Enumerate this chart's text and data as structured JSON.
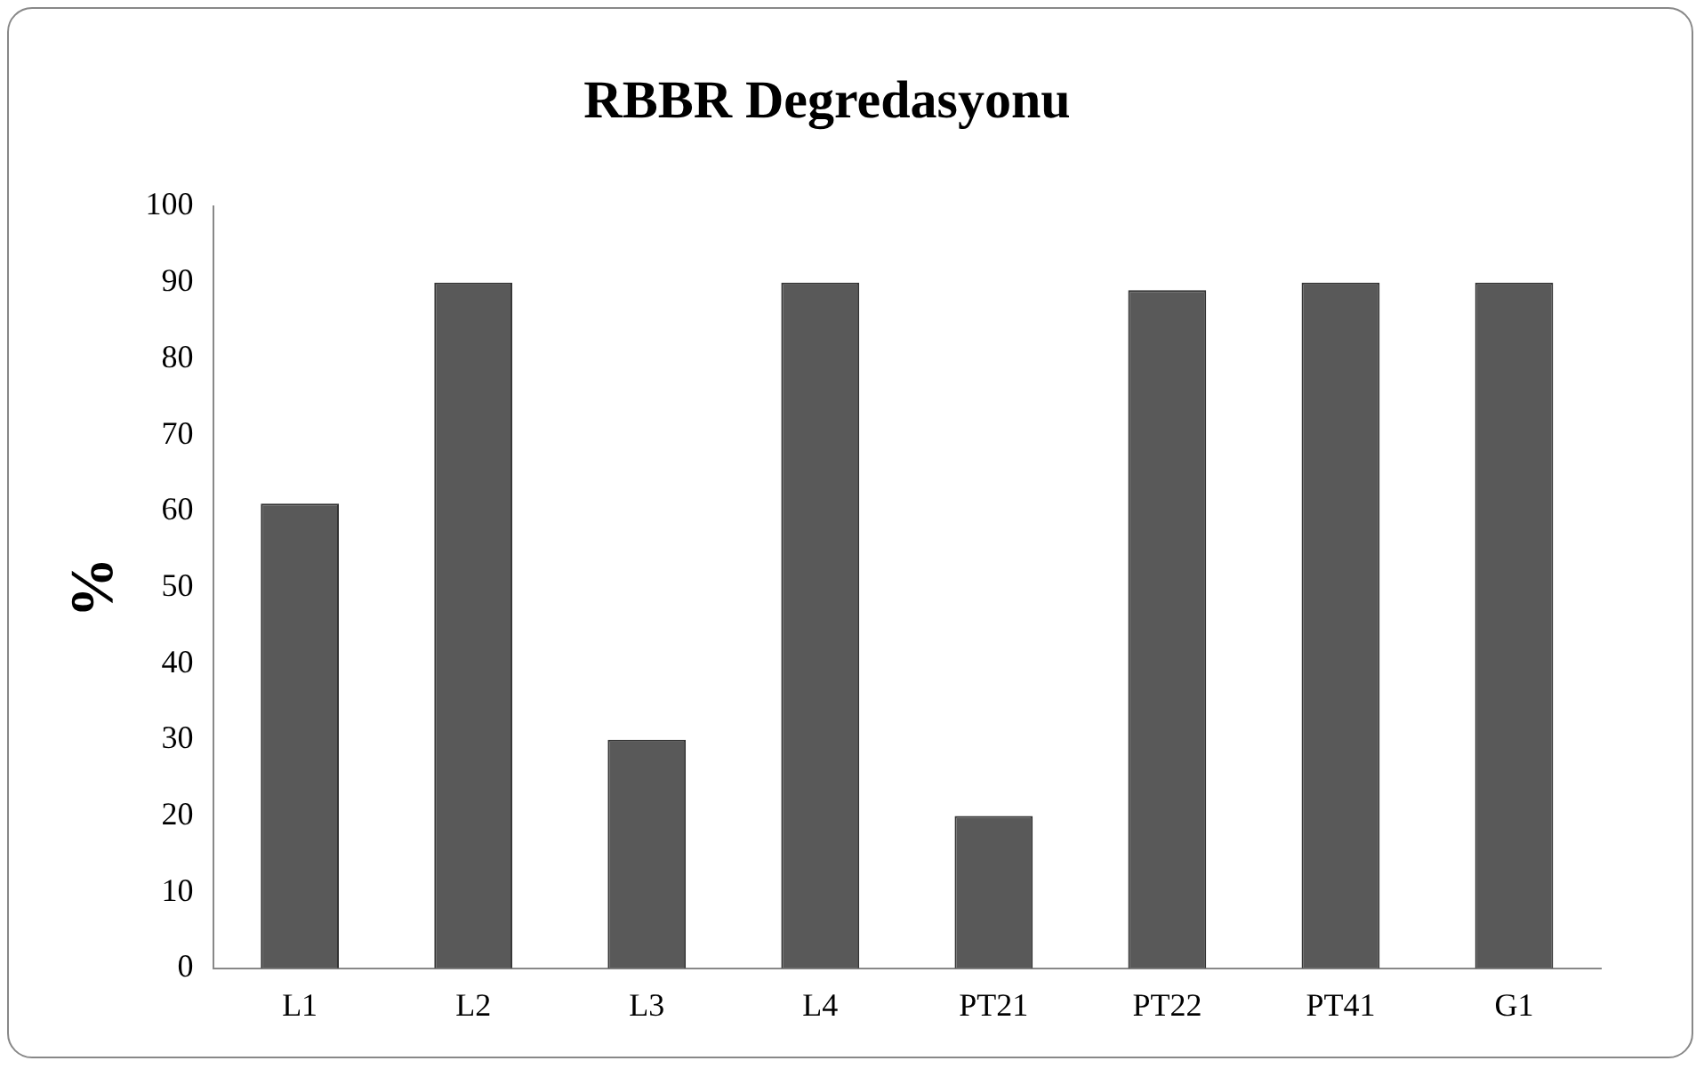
{
  "chart_data": {
    "type": "bar",
    "title": "RBBR Degredasyonu",
    "ylabel": "%",
    "categories": [
      "L1",
      "L2",
      "L3",
      "L4",
      "PT21",
      "PT22",
      "PT41",
      "G1"
    ],
    "values": [
      61,
      90,
      30,
      90,
      20,
      89,
      90,
      90
    ],
    "color": "#595959",
    "ylim": [
      0,
      100
    ],
    "yticks": [
      0,
      10,
      20,
      30,
      40,
      50,
      60,
      70,
      80,
      90,
      100
    ],
    "grid": false,
    "legend": false
  }
}
